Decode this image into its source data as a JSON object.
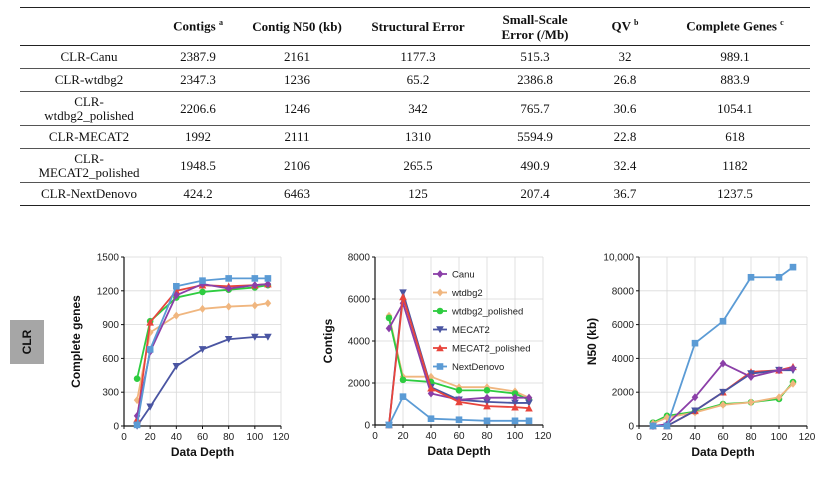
{
  "table": {
    "headers": [
      {
        "text": "",
        "sup": ""
      },
      {
        "text": "Contigs ",
        "sup": "a"
      },
      {
        "text": "Contig N50 (kb)",
        "sup": ""
      },
      {
        "text": "Structural Error",
        "sup": ""
      },
      {
        "text": "Small-Scale Error (/Mb)",
        "sup": ""
      },
      {
        "text": "QV ",
        "sup": "b"
      },
      {
        "text": "Complete Genes ",
        "sup": "c"
      }
    ],
    "rows": [
      [
        "CLR-Canu",
        "2387.9",
        "2161",
        "1177.3",
        "515.3",
        "32",
        "989.1"
      ],
      [
        "CLR-wtdbg2",
        "2347.3",
        "1236",
        "65.2",
        "2386.8",
        "26.8",
        "883.9"
      ],
      [
        "CLR-wtdbg2_polished",
        "2206.6",
        "1246",
        "342",
        "765.7",
        "30.6",
        "1054.1"
      ],
      [
        "CLR-MECAT2",
        "1992",
        "2111",
        "1310",
        "5594.9",
        "22.8",
        "618"
      ],
      [
        "CLR-MECAT2_polished",
        "1948.5",
        "2106",
        "265.5",
        "490.9",
        "32.4",
        "1182"
      ],
      [
        "CLR-NextDenovo",
        "424.2",
        "6463",
        "125",
        "207.4",
        "36.7",
        "1237.5"
      ]
    ],
    "row_name_lines": [
      [
        "CLR-Canu"
      ],
      [
        "CLR-wtdbg2"
      ],
      [
        "CLR-",
        "wtdbg2_polished"
      ],
      [
        "CLR-MECAT2"
      ],
      [
        "CLR-",
        "MECAT2_polished"
      ],
      [
        "CLR-NextDenovo"
      ]
    ]
  },
  "side_label": "CLR",
  "colors": {
    "Canu": "#8b3fa8",
    "wtdbg2": "#f0b67f",
    "wtdbg2_polished": "#2ecc40",
    "MECAT2": "#4a55a2",
    "MECAT2_polished": "#e8453c",
    "NextDenovo": "#5b9bd5",
    "grid": "#d9d9d9",
    "axis": "#111111"
  },
  "chart_data": [
    {
      "type": "line",
      "title": "",
      "xlabel": "Data Depth",
      "ylabel": "Complete genes",
      "xlim": [
        0,
        120
      ],
      "ylim": [
        0,
        1500
      ],
      "xticks": [
        "0",
        "20",
        "40",
        "60",
        "80",
        "100",
        "120"
      ],
      "yticks": [
        "0",
        "300",
        "600",
        "900",
        "1200",
        "1500"
      ],
      "x": [
        10,
        20,
        40,
        60,
        80,
        100,
        110
      ],
      "series": [
        {
          "name": "wtdbg2",
          "marker": "diamond",
          "values": [
            230,
            830,
            980,
            1040,
            1060,
            1070,
            1090
          ]
        },
        {
          "name": "MECAT2",
          "marker": "triangle-down",
          "values": [
            0,
            170,
            530,
            680,
            770,
            790,
            790
          ]
        },
        {
          "name": "wtdbg2_polished",
          "marker": "circle",
          "values": [
            420,
            930,
            1140,
            1190,
            1210,
            1230,
            1250
          ]
        },
        {
          "name": "MECAT2_polished",
          "marker": "triangle-up",
          "values": [
            60,
            920,
            1200,
            1250,
            1240,
            1250,
            1260
          ]
        },
        {
          "name": "Canu",
          "marker": "diamond",
          "values": [
            90,
            660,
            1160,
            1260,
            1220,
            1250,
            1260
          ]
        },
        {
          "name": "NextDenovo",
          "marker": "square",
          "values": [
            10,
            680,
            1240,
            1290,
            1310,
            1310,
            1310
          ]
        }
      ]
    },
    {
      "type": "line",
      "title": "",
      "xlabel": "Data Depth",
      "ylabel": "Contigs",
      "xlim": [
        0,
        120
      ],
      "ylim": [
        0,
        8000
      ],
      "xticks": [
        "0",
        "20",
        "40",
        "60",
        "80",
        "100",
        "120"
      ],
      "yticks": [
        "0",
        "2000",
        "4000",
        "6000",
        "8000"
      ],
      "x": [
        10,
        20,
        40,
        60,
        80,
        100,
        110
      ],
      "legend": {
        "placement": "top-right",
        "entries": [
          "Canu",
          "wtdbg2",
          "wtdbg2_polished",
          "MECAT2",
          "MECAT2_polished",
          "NextDenovo"
        ]
      },
      "series": [
        {
          "name": "wtdbg2",
          "marker": "diamond",
          "values": [
            5200,
            2300,
            2300,
            1800,
            1800,
            1600,
            1300
          ]
        },
        {
          "name": "wtdbg2_polished",
          "marker": "circle",
          "values": [
            5100,
            2150,
            2050,
            1650,
            1650,
            1500,
            1200
          ]
        },
        {
          "name": "MECAT2",
          "marker": "triangle-down",
          "values": [
            0,
            6300,
            1800,
            1200,
            1100,
            1050,
            1050
          ]
        },
        {
          "name": "Canu",
          "marker": "diamond",
          "values": [
            4600,
            5800,
            1500,
            1200,
            1300,
            1300,
            1300
          ]
        },
        {
          "name": "MECAT2_polished",
          "marker": "triangle-up",
          "values": [
            0,
            6100,
            1750,
            1100,
            900,
            850,
            800
          ]
        },
        {
          "name": "NextDenovo",
          "marker": "square",
          "values": [
            0,
            1350,
            300,
            250,
            200,
            200,
            200
          ]
        }
      ]
    },
    {
      "type": "line",
      "title": "",
      "xlabel": "Data Depth",
      "ylabel": "N50 (kb)",
      "xlim": [
        0,
        120
      ],
      "ylim": [
        0,
        10000
      ],
      "xticks": [
        "0",
        "20",
        "40",
        "60",
        "80",
        "100",
        "120"
      ],
      "yticks": [
        "0",
        "2000",
        "4000",
        "6000",
        "8000",
        "10,000"
      ],
      "x": [
        10,
        20,
        40,
        60,
        80,
        100,
        110
      ],
      "series": [
        {
          "name": "wtdbg2_polished",
          "marker": "circle",
          "values": [
            200,
            600,
            850,
            1300,
            1400,
            1600,
            2600
          ]
        },
        {
          "name": "wtdbg2",
          "marker": "diamond",
          "values": [
            150,
            500,
            800,
            1250,
            1400,
            1700,
            2500
          ]
        },
        {
          "name": "MECAT2_polished",
          "marker": "triangle-up",
          "values": [
            0,
            0,
            900,
            2000,
            3200,
            3300,
            3500
          ]
        },
        {
          "name": "MECAT2",
          "marker": "triangle-down",
          "values": [
            0,
            0,
            900,
            2000,
            3100,
            3300,
            3300
          ]
        },
        {
          "name": "Canu",
          "marker": "diamond",
          "values": [
            0,
            100,
            1700,
            3700,
            2900,
            3300,
            3400
          ]
        },
        {
          "name": "NextDenovo",
          "marker": "square",
          "values": [
            0,
            0,
            4900,
            6200,
            8800,
            8800,
            9400
          ]
        }
      ]
    }
  ]
}
